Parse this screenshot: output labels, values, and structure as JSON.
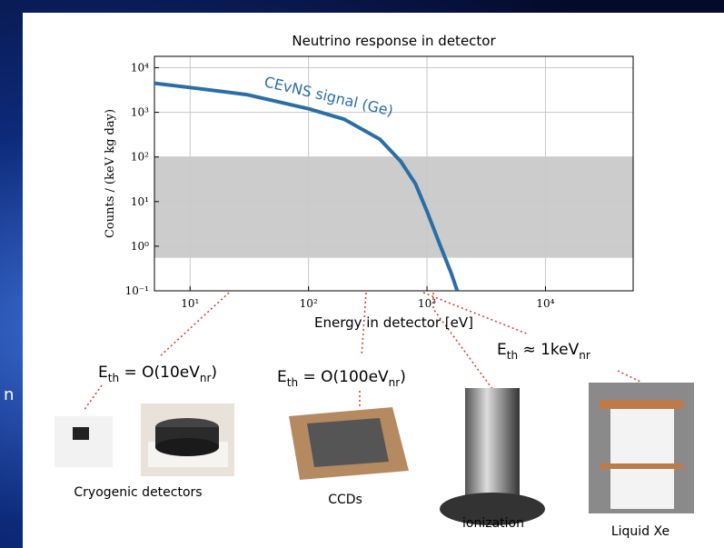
{
  "slide_fragment": "n",
  "chart_data": {
    "type": "line",
    "title": "Neutrino response in detector",
    "x_label": "Energy in detector [eV]",
    "y_label": "Counts / (keV kg day)",
    "xscale": "log",
    "yscale": "log",
    "grid": true,
    "x": [
      5,
      10,
      30,
      100,
      200,
      400,
      600,
      800,
      1000,
      1300,
      1600,
      1800
    ],
    "series": [
      {
        "name": "CEvNS signal (Ge)",
        "color": "#2b6ea6",
        "values": [
          4500,
          3600,
          2500,
          1200,
          700,
          250,
          80,
          25,
          6,
          1,
          0.25,
          0.1
        ]
      }
    ],
    "shaded_band": [
      0.55,
      100
    ],
    "band_color": "#cccccc",
    "xlim": [
      5,
      55000
    ],
    "ylim": [
      0.1,
      18000
    ],
    "xticks": [
      {
        "value": 10,
        "label": "10¹"
      },
      {
        "value": 100,
        "label": "10²"
      },
      {
        "value": 1000,
        "label": "10³"
      },
      {
        "value": 10000,
        "label": "10⁴"
      }
    ],
    "yticks": [
      {
        "value": 0.1,
        "label": "10⁻¹"
      },
      {
        "value": 1,
        "label": "10⁰"
      },
      {
        "value": 10,
        "label": "10¹"
      },
      {
        "value": 100,
        "label": "10²"
      },
      {
        "value": 1000,
        "label": "10³"
      },
      {
        "value": 10000,
        "label": "10⁴"
      }
    ]
  },
  "threshold_labels": [
    {
      "parts": [
        "E",
        "th",
        " = O(10eV",
        "nr",
        ")"
      ]
    },
    {
      "parts": [
        "E",
        "th",
        " = O(100eV",
        "nr",
        ")"
      ]
    },
    {
      "parts": [
        "E",
        "th",
        " ≈ 1keV",
        "nr",
        ""
      ]
    }
  ],
  "captions": [
    "Cryogenic detectors",
    "CCDs",
    "ionization",
    "Liquid Xe"
  ]
}
